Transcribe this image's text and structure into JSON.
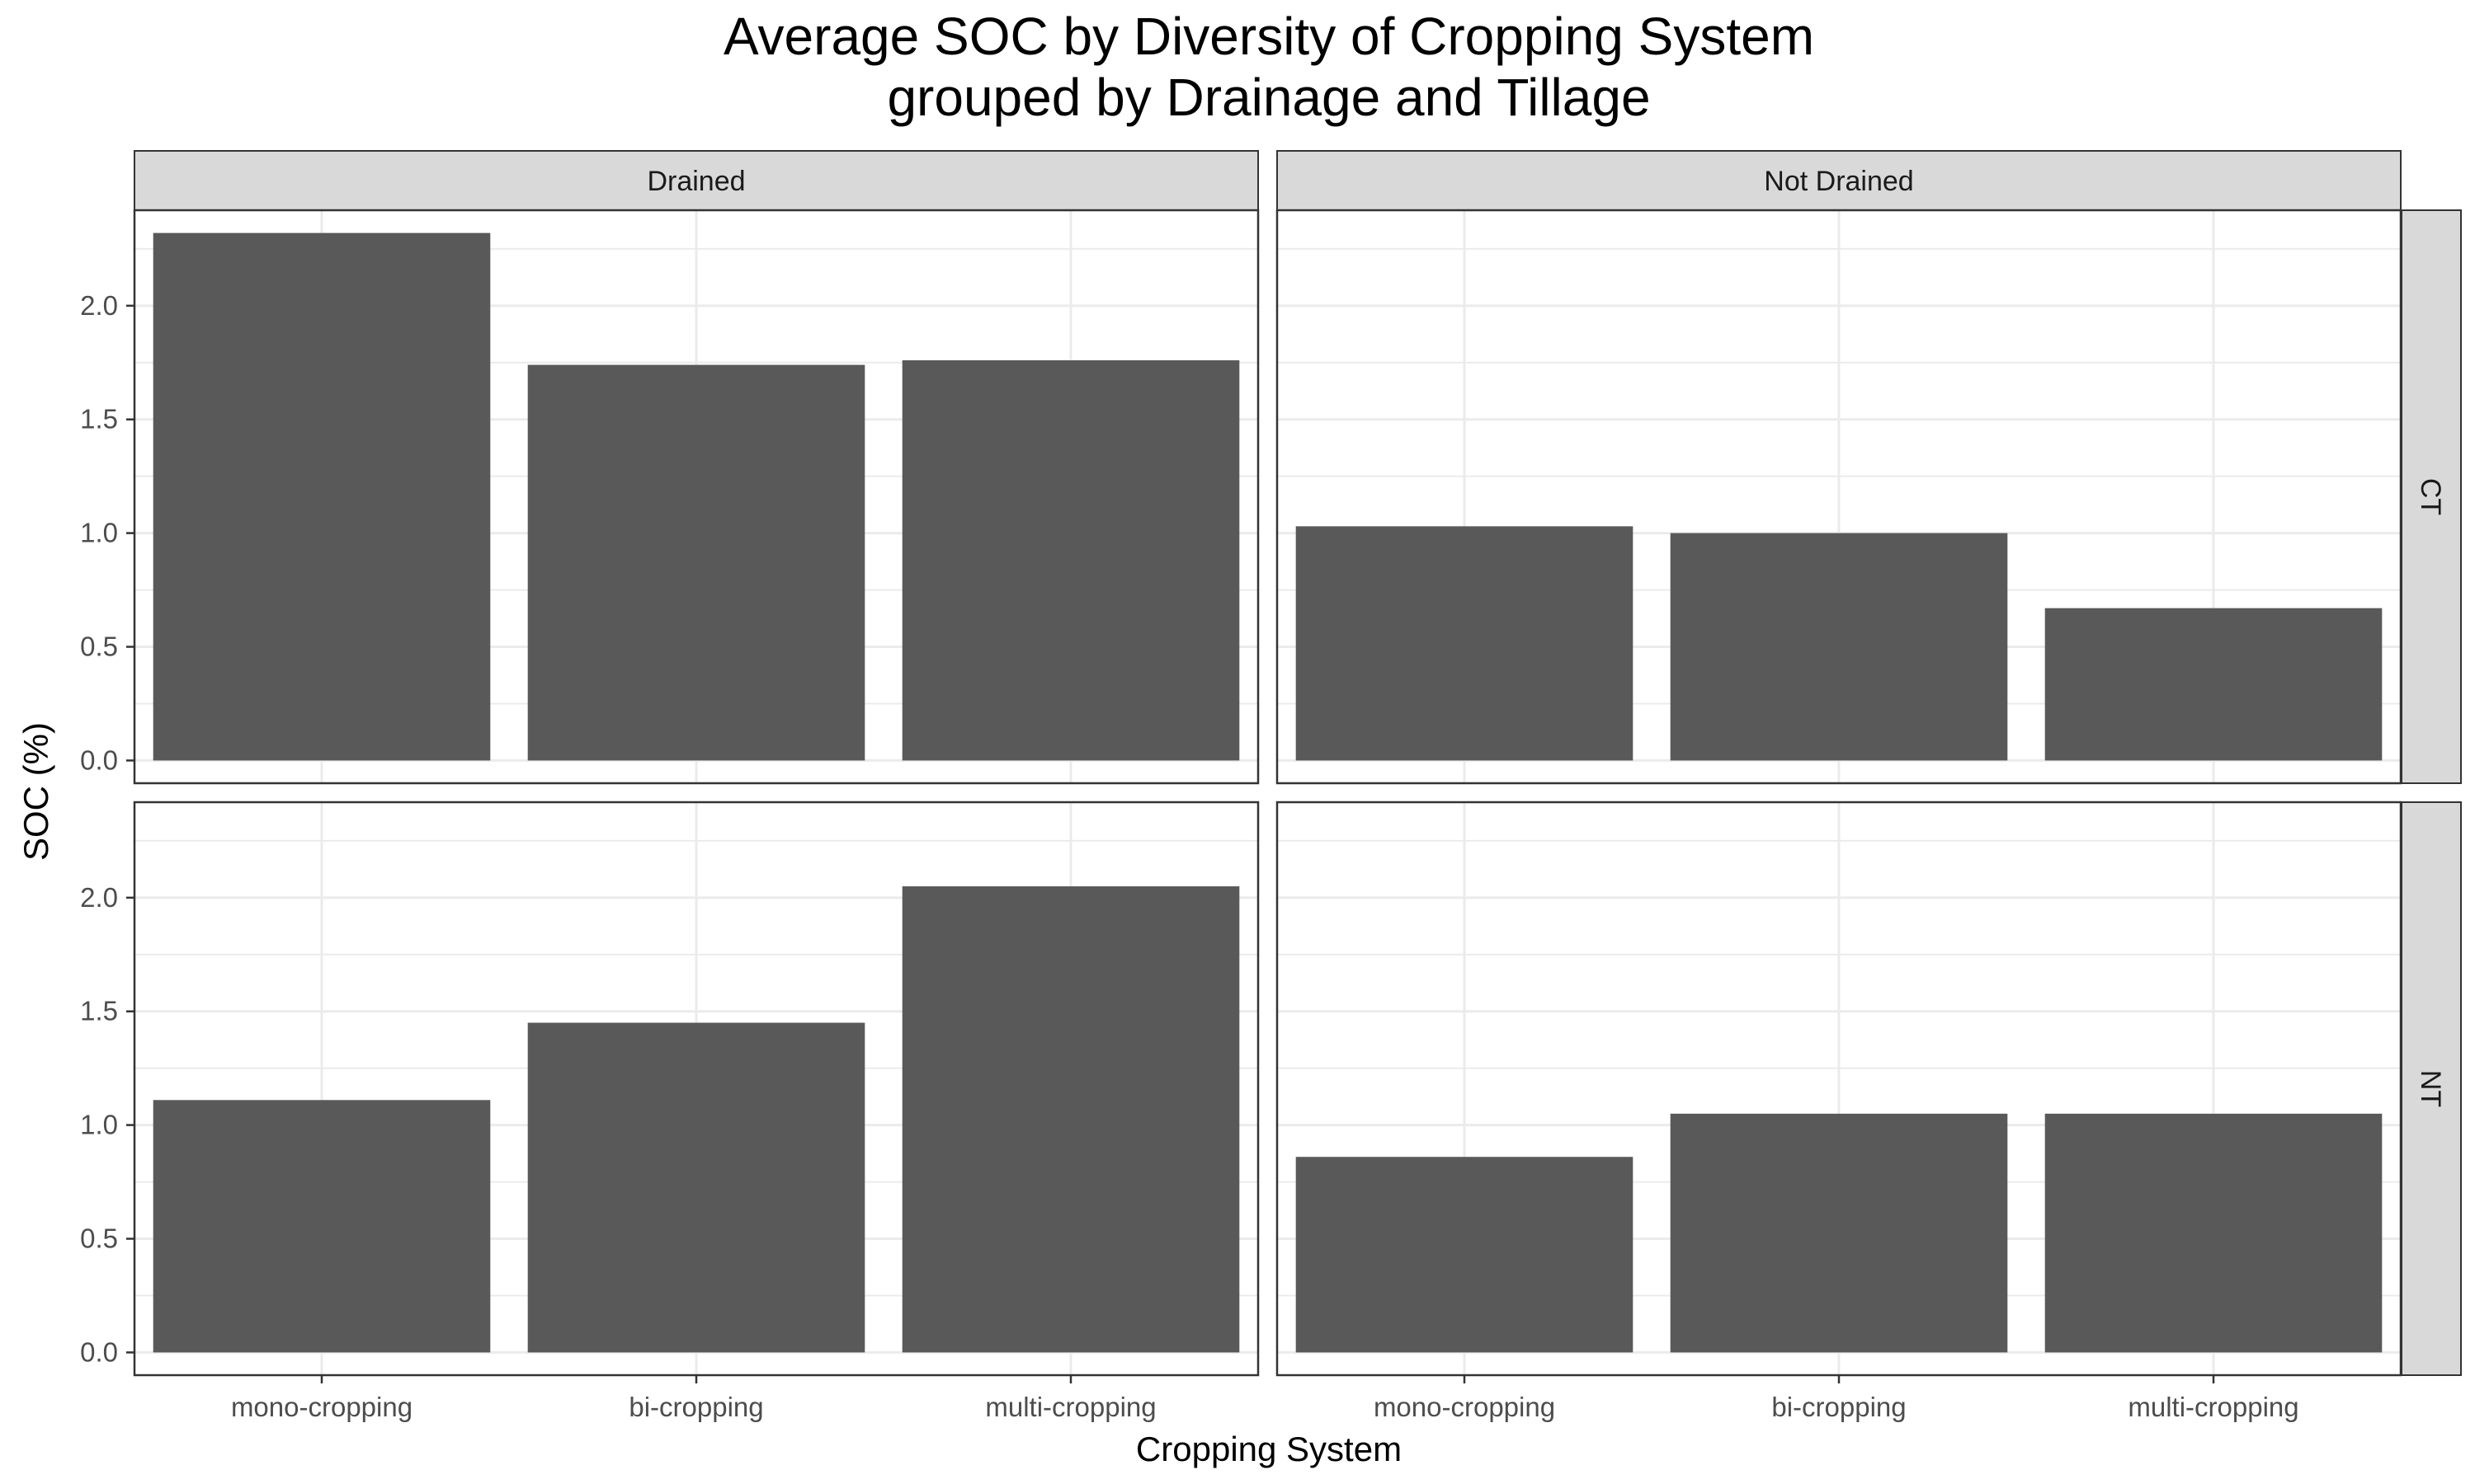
{
  "chart_data": {
    "type": "bar",
    "title": "Average SOC by Diversity of Cropping System",
    "subtitle": "grouped by Drainage and Tillage",
    "xlabel": "Cropping System",
    "ylabel": "SOC (%)",
    "categories": [
      "mono-cropping",
      "bi-cropping",
      "multi-cropping"
    ],
    "y_ticks": [
      "0.0",
      "0.5",
      "1.0",
      "1.5",
      "2.0"
    ],
    "ylim": [
      -0.1,
      2.42
    ],
    "grid": true,
    "bar_color": "#595959",
    "grid_color": "#ebebeb",
    "strip_fill": "#d9d9d9",
    "facet_cols": [
      "Drained",
      "Not Drained"
    ],
    "facet_rows": [
      "CT",
      "NT"
    ],
    "panels": [
      {
        "drainage": "Drained",
        "tillage": "CT",
        "values": [
          2.32,
          1.74,
          1.76
        ]
      },
      {
        "drainage": "Not Drained",
        "tillage": "CT",
        "values": [
          1.03,
          1.0,
          0.67
        ]
      },
      {
        "drainage": "Drained",
        "tillage": "NT",
        "values": [
          1.11,
          1.45,
          2.05
        ]
      },
      {
        "drainage": "Not Drained",
        "tillage": "NT",
        "values": [
          0.86,
          1.05,
          1.05
        ]
      }
    ]
  }
}
